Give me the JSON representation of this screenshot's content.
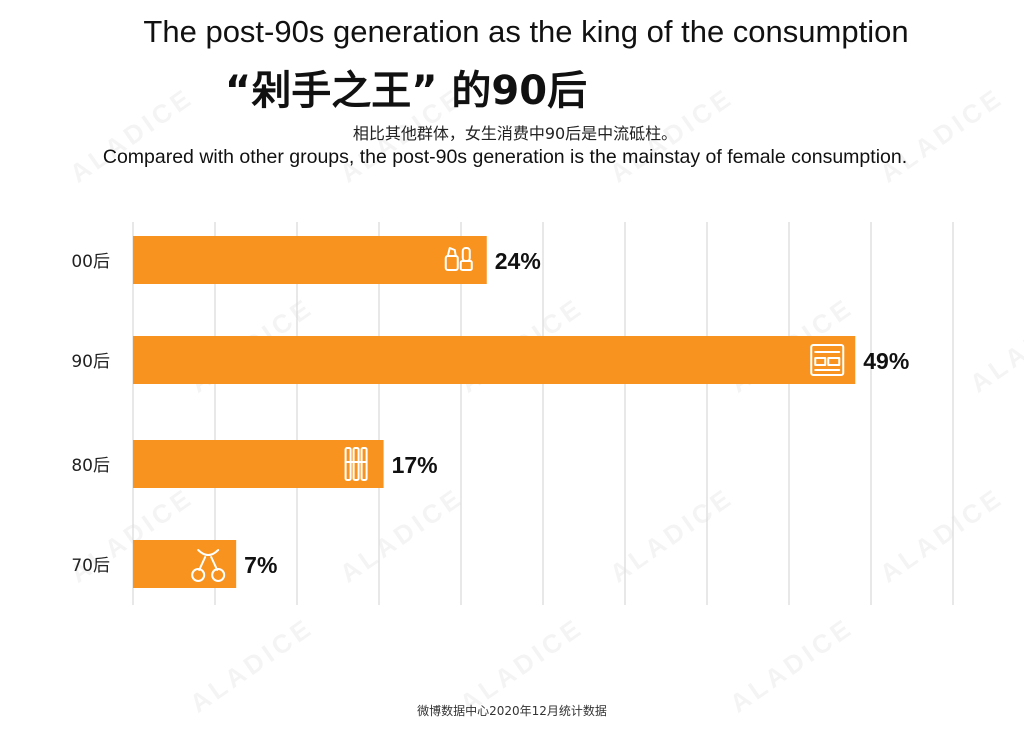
{
  "header": {
    "title_en": "The post-90s generation as the king of the consumption",
    "title_cn": "“剁手之王” 的90后",
    "subtitle_cn": "相比其他群体，女生消费中90后是中流砥柱。",
    "subtitle_en": "Compared with other groups, the post-90s generation is the mainstay of female consumption."
  },
  "footer": {
    "source": "微博数据中心2020年12月统计数据"
  },
  "watermark": "ALADICE",
  "chart_data": {
    "type": "bar",
    "orientation": "horizontal",
    "categories": [
      "00后",
      "90后",
      "80后",
      "70后"
    ],
    "values": [
      24,
      49,
      17,
      7
    ],
    "value_labels": [
      "24%",
      "49%",
      "17%",
      "7%"
    ],
    "icons": [
      "lipstick-icon",
      "eyeshadow-palette-icon",
      "makeup-brush-icon",
      "eyelash-curler-icon"
    ],
    "xlim": [
      0,
      50
    ],
    "grid": true,
    "bar_color": "#F7931E",
    "grid_color": "#d9d9d9",
    "legend": "none"
  }
}
